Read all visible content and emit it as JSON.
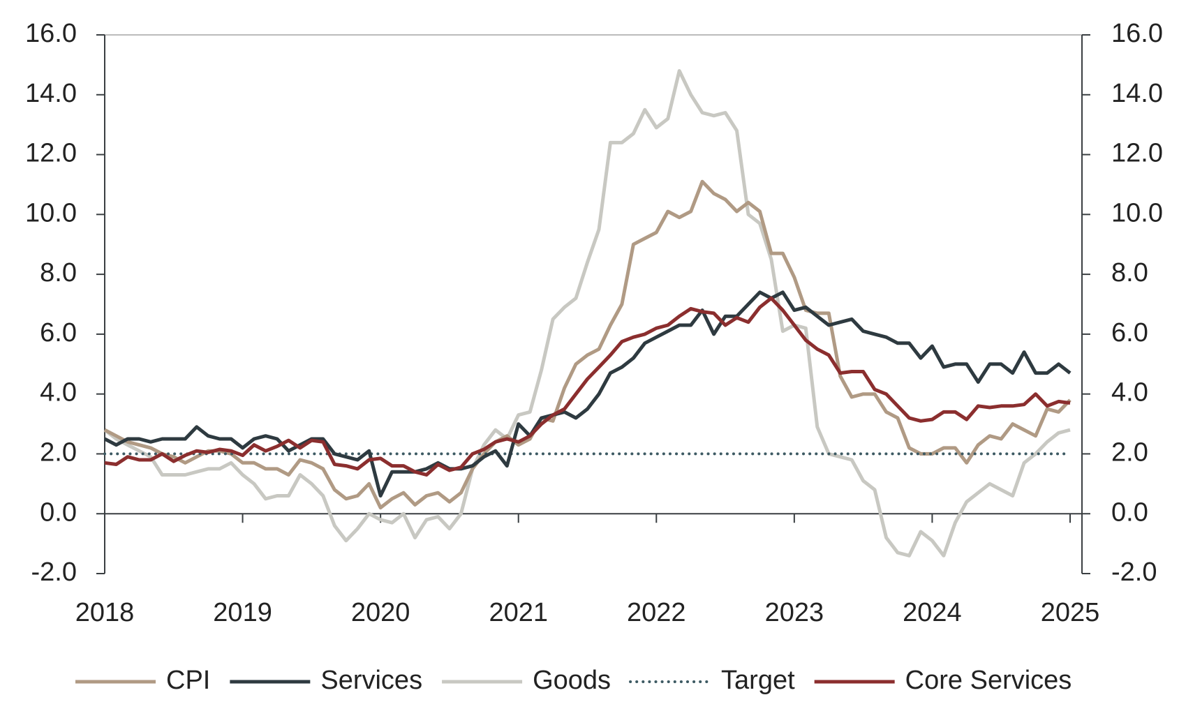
{
  "chart_data": {
    "type": "line",
    "categories": [
      "2018",
      null,
      null,
      null,
      null,
      null,
      null,
      null,
      null,
      null,
      null,
      null,
      "2019",
      null,
      null,
      null,
      null,
      null,
      null,
      null,
      null,
      null,
      null,
      null,
      "2020",
      null,
      null,
      null,
      null,
      null,
      null,
      null,
      null,
      null,
      null,
      null,
      "2021",
      null,
      null,
      null,
      null,
      null,
      null,
      null,
      null,
      null,
      null,
      null,
      "2022",
      null,
      null,
      null,
      null,
      null,
      null,
      null,
      null,
      null,
      null,
      null,
      "2023",
      null,
      null,
      null,
      null,
      null,
      null,
      null,
      null,
      null,
      null,
      null,
      "2024",
      null,
      null,
      null,
      null,
      null,
      null,
      null,
      null,
      null,
      null,
      null,
      "2025"
    ],
    "ylim": [
      -2,
      16
    ],
    "yticks": [
      {
        "value": -2,
        "label": "-2.0"
      },
      {
        "value": 0,
        "label": "0.0"
      },
      {
        "value": 2,
        "label": "2.0"
      },
      {
        "value": 4,
        "label": "4.0"
      },
      {
        "value": 6,
        "label": "6.0"
      },
      {
        "value": 8,
        "label": "8.0"
      },
      {
        "value": 10,
        "label": "10.0"
      },
      {
        "value": 12,
        "label": "12.0"
      },
      {
        "value": 14,
        "label": "14.0"
      },
      {
        "value": 16,
        "label": "16.0"
      }
    ],
    "y2lim": [
      -2,
      16
    ],
    "y2ticks": [
      {
        "value": -2,
        "label": "-2.0"
      },
      {
        "value": 0,
        "label": "0.0"
      },
      {
        "value": 2,
        "label": "2.0"
      },
      {
        "value": 4,
        "label": "4.0"
      },
      {
        "value": 6,
        "label": "6.0"
      },
      {
        "value": 8,
        "label": "8.0"
      },
      {
        "value": 10,
        "label": "10.0"
      },
      {
        "value": 12,
        "label": "12.0"
      },
      {
        "value": 14,
        "label": "14.0"
      },
      {
        "value": 16,
        "label": "16.0"
      }
    ],
    "legend": "bottom",
    "series": [
      {
        "name": "CPI",
        "color": "#b09a84",
        "values": [
          2.8,
          2.6,
          2.4,
          2.3,
          2.2,
          2.0,
          1.9,
          1.7,
          1.9,
          2.1,
          2.1,
          2.0,
          1.7,
          1.7,
          1.5,
          1.5,
          1.3,
          1.8,
          1.7,
          1.5,
          0.8,
          0.5,
          0.6,
          1.0,
          0.2,
          0.5,
          0.7,
          0.3,
          0.6,
          0.7,
          0.4,
          0.7,
          1.5,
          2.0,
          2.4,
          2.6,
          2.3,
          2.5,
          3.2,
          3.1,
          4.2,
          5.0,
          5.3,
          5.5,
          6.3,
          7.0,
          9.0,
          9.2,
          9.4,
          10.1,
          9.9,
          10.1,
          11.1,
          10.7,
          10.5,
          10.1,
          10.4,
          10.1,
          8.7,
          8.7,
          7.9,
          6.8,
          6.7,
          6.7,
          4.6,
          3.9,
          4.0,
          4.0,
          3.4,
          3.2,
          2.2,
          2.0,
          2.0,
          2.2,
          2.2,
          1.7,
          2.3,
          2.6,
          2.5,
          3.0,
          2.8,
          2.6,
          3.5,
          3.4,
          3.8
        ]
      },
      {
        "name": "Services",
        "color": "#2e3a40",
        "values": [
          2.5,
          2.3,
          2.5,
          2.5,
          2.4,
          2.5,
          2.5,
          2.5,
          2.9,
          2.6,
          2.5,
          2.5,
          2.2,
          2.5,
          2.6,
          2.5,
          2.1,
          2.3,
          2.5,
          2.5,
          2.0,
          1.9,
          1.8,
          2.1,
          0.6,
          1.4,
          1.4,
          1.4,
          1.5,
          1.7,
          1.5,
          1.5,
          1.6,
          1.9,
          2.1,
          1.6,
          3.0,
          2.6,
          3.2,
          3.3,
          3.4,
          3.2,
          3.5,
          4.0,
          4.7,
          4.9,
          5.2,
          5.7,
          5.9,
          6.1,
          6.3,
          6.3,
          6.8,
          6.0,
          6.6,
          6.6,
          7.0,
          7.4,
          7.2,
          7.4,
          6.8,
          6.9,
          6.6,
          6.3,
          6.4,
          6.5,
          6.1,
          6.0,
          5.9,
          5.7,
          5.7,
          5.2,
          5.6,
          4.9,
          5.0,
          5.0,
          4.4,
          5.0,
          5.0,
          4.7,
          5.4,
          4.7,
          4.7,
          5.0,
          4.7
        ]
      },
      {
        "name": "Goods",
        "color": "#c8c8c2",
        "values": [
          2.8,
          2.5,
          2.3,
          2.1,
          1.9,
          1.3,
          1.3,
          1.3,
          1.4,
          1.5,
          1.5,
          1.7,
          1.3,
          1.0,
          0.5,
          0.6,
          0.6,
          1.3,
          1.0,
          0.6,
          -0.4,
          -0.9,
          -0.5,
          0.0,
          -0.2,
          -0.3,
          0.0,
          -0.8,
          -0.2,
          -0.1,
          -0.5,
          0.0,
          1.5,
          2.3,
          2.8,
          2.5,
          3.3,
          3.4,
          4.8,
          6.5,
          6.9,
          7.2,
          8.4,
          9.5,
          12.4,
          12.4,
          12.7,
          13.5,
          12.9,
          13.2,
          14.8,
          14.0,
          13.4,
          13.3,
          13.4,
          12.8,
          10.0,
          9.7,
          8.5,
          6.1,
          6.3,
          6.2,
          2.9,
          2.0,
          1.9,
          1.8,
          1.1,
          0.8,
          -0.8,
          -1.3,
          -1.4,
          -0.6,
          -0.9,
          -1.4,
          -0.3,
          0.4,
          0.7,
          1.0,
          0.8,
          0.6,
          1.7,
          2.0,
          2.4,
          2.7,
          2.8
        ]
      },
      {
        "name": "Target",
        "color": "#3d5a63",
        "dotted": true,
        "values": [
          2,
          2,
          2,
          2,
          2,
          2,
          2,
          2,
          2,
          2,
          2,
          2,
          2,
          2,
          2,
          2,
          2,
          2,
          2,
          2,
          2,
          2,
          2,
          2,
          2,
          2,
          2,
          2,
          2,
          2,
          2,
          2,
          2,
          2,
          2,
          2,
          2,
          2,
          2,
          2,
          2,
          2,
          2,
          2,
          2,
          2,
          2,
          2,
          2,
          2,
          2,
          2,
          2,
          2,
          2,
          2,
          2,
          2,
          2,
          2,
          2,
          2,
          2,
          2,
          2,
          2,
          2,
          2,
          2,
          2,
          2,
          2,
          2,
          2,
          2,
          2,
          2,
          2,
          2,
          2,
          2,
          2,
          2,
          2,
          2
        ]
      },
      {
        "name": "Core Services",
        "color": "#8b2e2e",
        "values": [
          1.7,
          1.65,
          1.9,
          1.8,
          1.8,
          2.0,
          1.75,
          1.95,
          2.1,
          2.05,
          2.15,
          2.1,
          1.95,
          2.3,
          2.1,
          2.25,
          2.45,
          2.2,
          2.45,
          2.4,
          1.65,
          1.6,
          1.5,
          1.8,
          1.85,
          1.6,
          1.6,
          1.4,
          1.3,
          1.65,
          1.45,
          1.55,
          2.0,
          2.15,
          2.4,
          2.5,
          2.4,
          2.6,
          3.0,
          3.3,
          3.5,
          4.0,
          4.5,
          4.9,
          5.3,
          5.75,
          5.9,
          6.0,
          6.2,
          6.3,
          6.6,
          6.85,
          6.75,
          6.7,
          6.3,
          6.55,
          6.4,
          6.9,
          7.2,
          6.8,
          6.3,
          5.8,
          5.5,
          5.3,
          4.7,
          4.75,
          4.75,
          4.15,
          4.0,
          3.6,
          3.2,
          3.1,
          3.15,
          3.4,
          3.4,
          3.15,
          3.6,
          3.55,
          3.6,
          3.6,
          3.65,
          4.0,
          3.6,
          3.75,
          3.7
        ]
      }
    ]
  }
}
